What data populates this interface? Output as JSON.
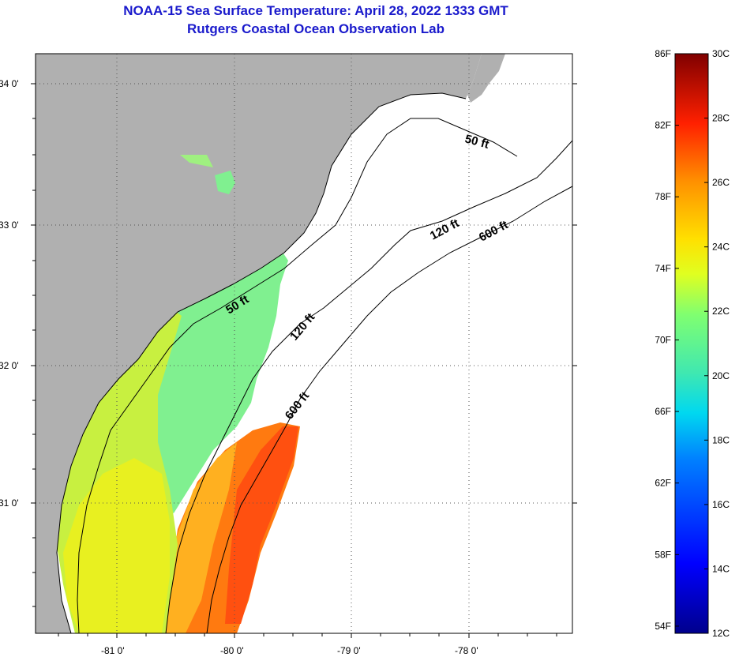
{
  "title": {
    "line1": "NOAA-15 Sea Surface Temperature:  April 28, 2022 1333 GMT",
    "line2": "Rutgers Coastal Ocean Observation Lab"
  },
  "map": {
    "lat_labels": [
      "34 0'",
      "33 0'",
      "32 0'",
      "31 0'"
    ],
    "lon_labels": [
      "-81 0'",
      "-80 0'",
      "-79 0'",
      "-78 0'"
    ],
    "contour_labels": {
      "c50_a": "50 ft",
      "c50_b": "50 ft",
      "c120_a": "120 ft",
      "c120_b": "120 ft",
      "c600_a": "600 ft",
      "c600_b": "600 ft"
    },
    "colors": {
      "land": "#b0b0b0",
      "cloud_or_nodata": "#ffffff",
      "title": "#1a1acc"
    }
  },
  "colorbar": {
    "f_labels": [
      "86F",
      "82F",
      "78F",
      "74F",
      "70F",
      "66F",
      "62F",
      "58F",
      "54F"
    ],
    "c_labels": [
      "30C",
      "28C",
      "26C",
      "24C",
      "22C",
      "20C",
      "18C",
      "16C",
      "14C",
      "12C"
    ],
    "range_c": [
      12,
      30
    ]
  }
}
